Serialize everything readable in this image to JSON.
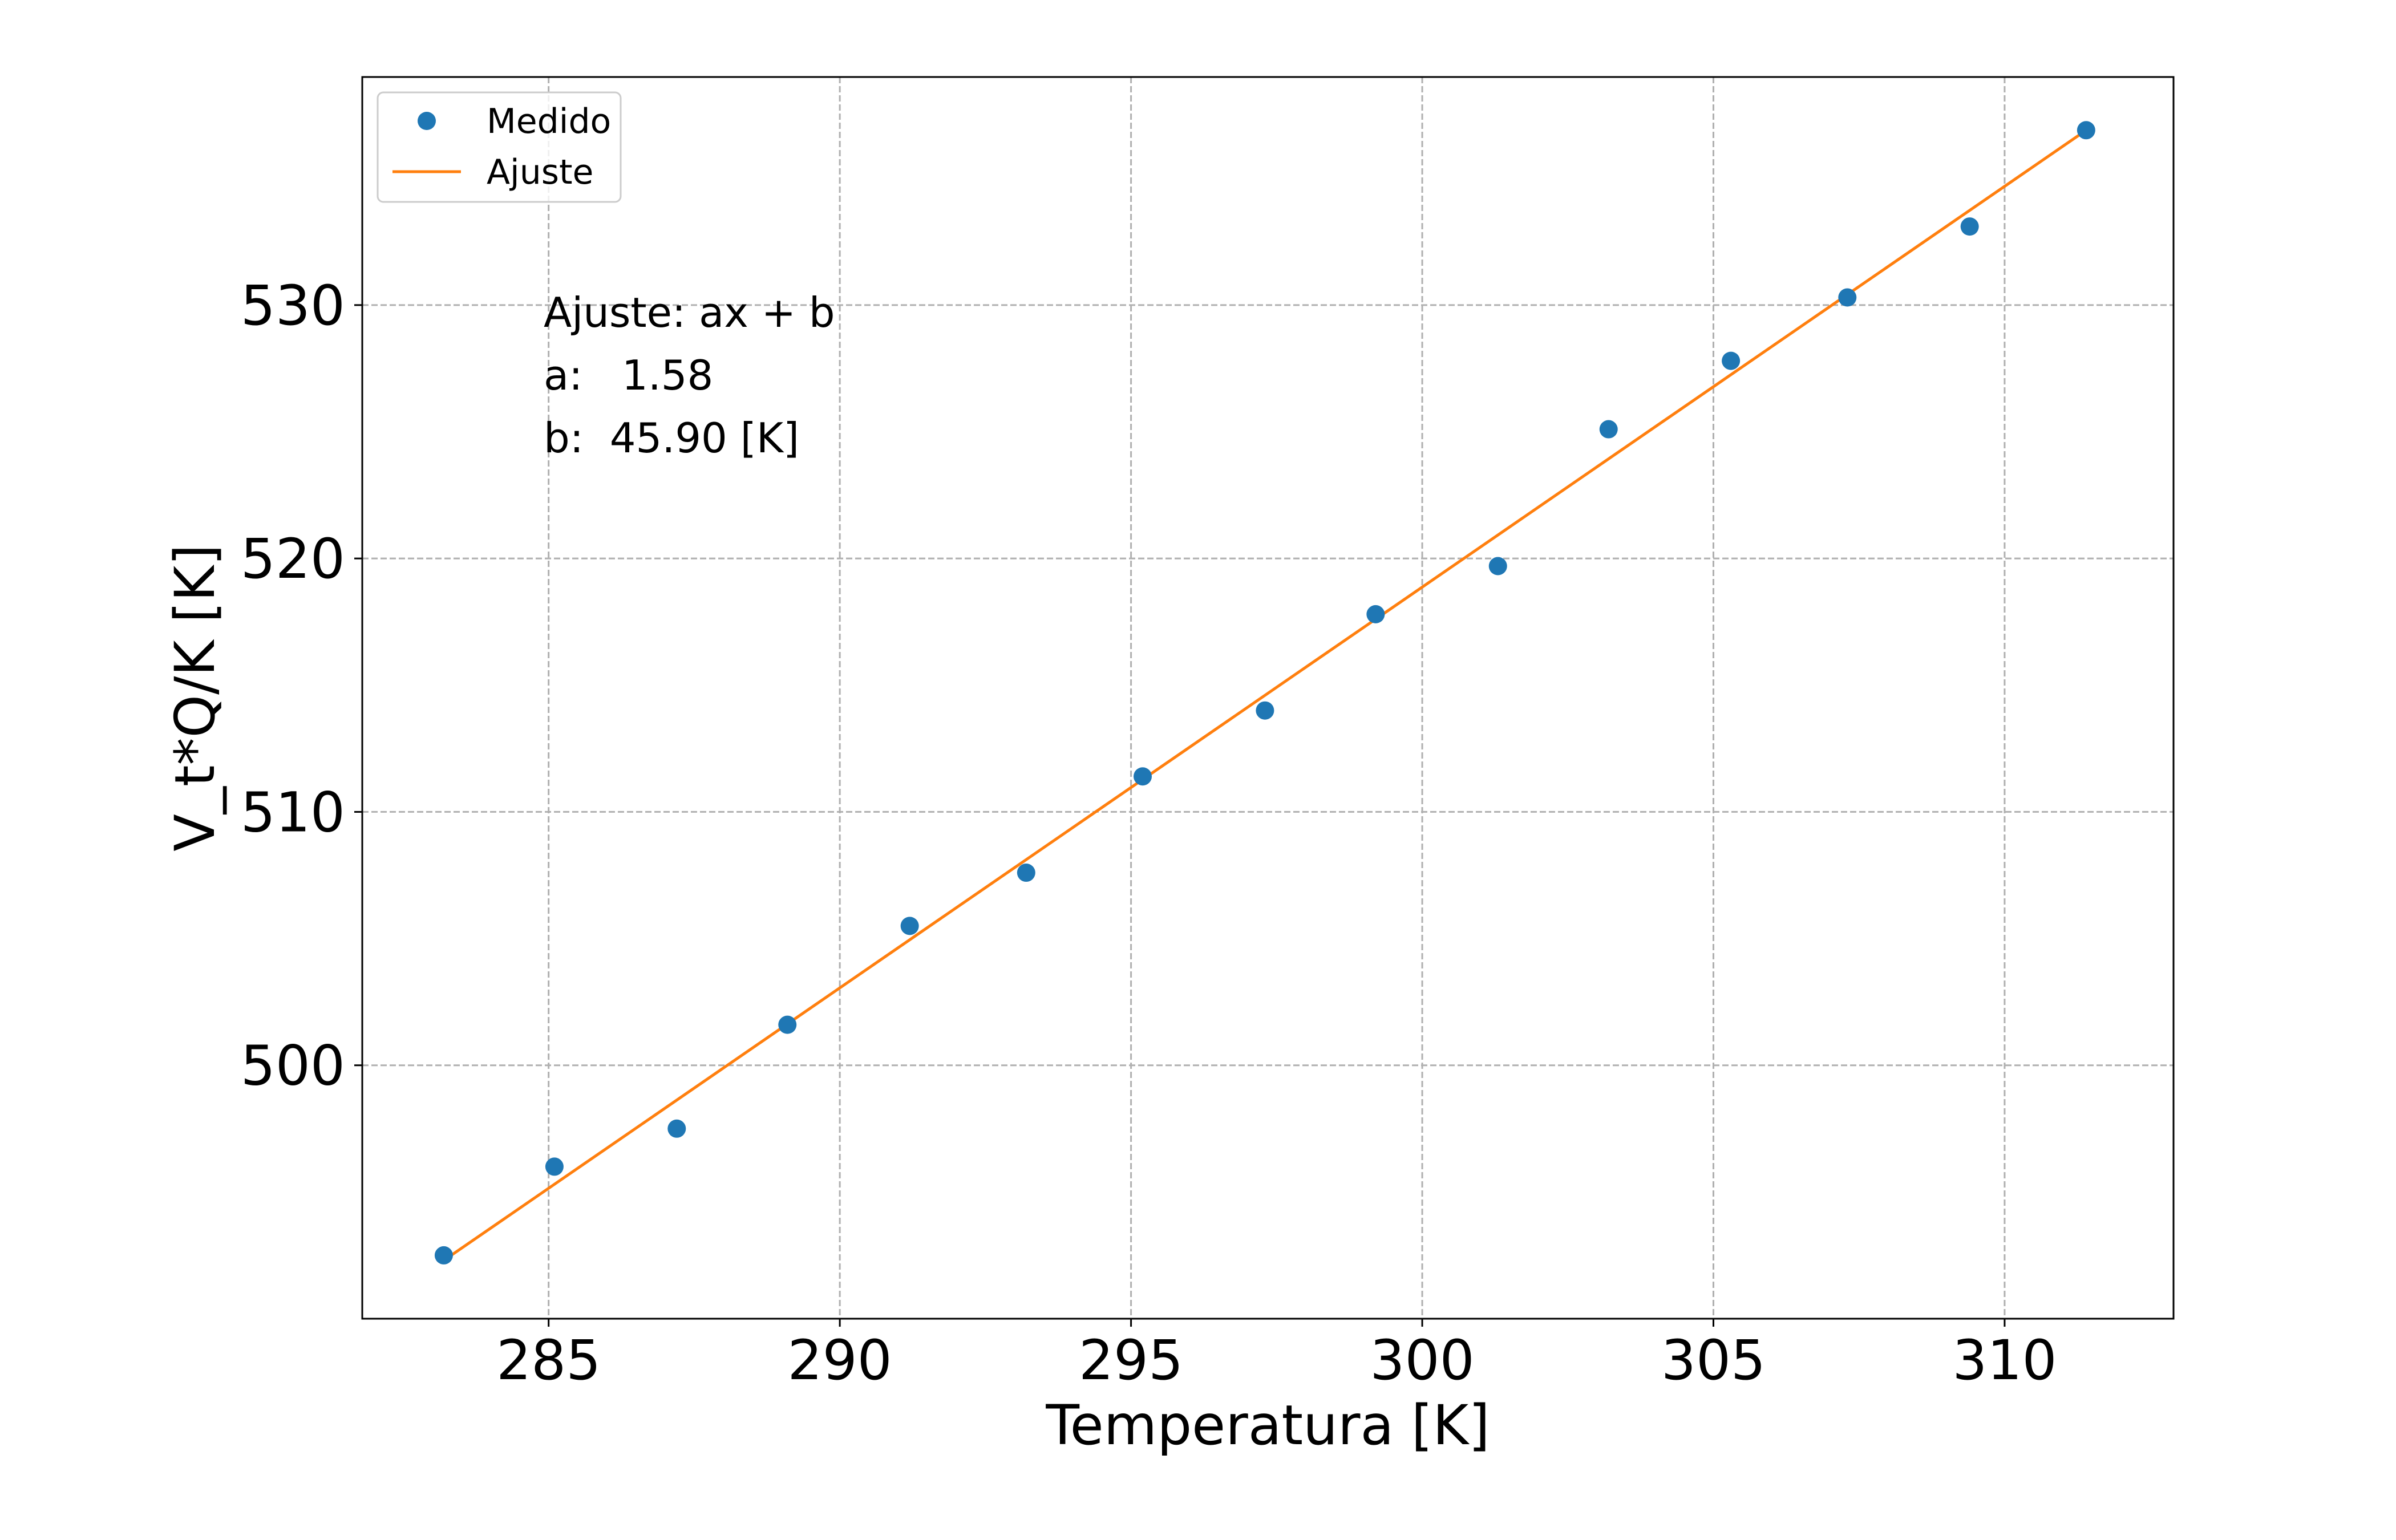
{
  "chart_data": {
    "type": "scatter",
    "xlabel": "Temperatura [K]",
    "ylabel": "V_t*Q/K [K]",
    "xlim": [
      281.8,
      312.9
    ],
    "ylim": [
      490.0,
      539.0
    ],
    "xticks": [
      285,
      290,
      295,
      300,
      305,
      310
    ],
    "yticks": [
      500,
      510,
      520,
      530
    ],
    "grid": true,
    "legend_position": "top-left",
    "series": [
      {
        "name": "Medido",
        "kind": "points",
        "color": "#1f77b4",
        "x": [
          283.2,
          285.1,
          287.2,
          289.1,
          291.2,
          293.2,
          295.2,
          297.3,
          299.2,
          301.3,
          303.2,
          305.3,
          307.3,
          309.4,
          311.4
        ],
        "y": [
          492.5,
          496.0,
          497.5,
          501.6,
          505.5,
          507.6,
          511.4,
          514.0,
          517.8,
          519.7,
          525.1,
          527.8,
          530.3,
          533.1,
          536.9
        ]
      },
      {
        "name": "Ajuste",
        "kind": "line",
        "color": "#ff7f0e",
        "x": [
          283.2,
          311.4
        ],
        "y": [
          492.3,
          536.9
        ]
      }
    ],
    "annotation": {
      "lines": [
        "Ajuste: ax + b",
        "a:   1.58",
        "b:  45.90 [K]"
      ]
    }
  }
}
